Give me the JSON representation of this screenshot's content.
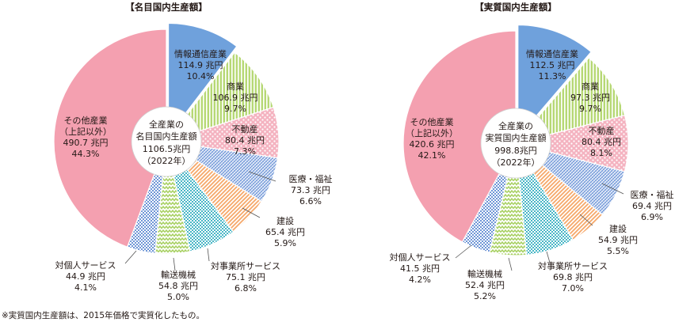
{
  "footnote": "※実質国内生産額は、2015年価格で実質化したもの。",
  "styles": {
    "情報通信産業": {
      "fill": "#6fa1dc",
      "pattern": "solid"
    },
    "商業": {
      "fill": "#b6d874",
      "pattern": "vlines"
    },
    "不動産": {
      "fill": "#f4b3c0",
      "pattern": "dots"
    },
    "医療・福祉": {
      "fill": "#6f96d6",
      "pattern": "hatch"
    },
    "建設": {
      "fill": "#f6a86a",
      "pattern": "diag"
    },
    "対事業所サービス": {
      "fill": "#48b6c6",
      "pattern": "checker"
    },
    "輸送機械": {
      "fill": "#a7d061",
      "pattern": "zigzag"
    },
    "対個人サービス": {
      "fill": "#6f96d6",
      "pattern": "checker"
    },
    "その他産業": {
      "fill": "#f4a0b0",
      "pattern": "solid"
    }
  },
  "chart_data": [
    {
      "type": "pie",
      "title": "【名目国内生産額】",
      "center_label": [
        "全産業の",
        "名目国内生産額",
        "1106.5兆円",
        "（2022年）"
      ],
      "categories": [
        "情報通信産業",
        "商業",
        "不動産",
        "医療・福祉",
        "建設",
        "対事業所サービス",
        "輸送機械",
        "対個人サービス",
        "その他産業"
      ],
      "values": [
        114.9,
        106.9,
        80.4,
        73.3,
        65.4,
        75.1,
        54.8,
        44.9,
        490.7
      ],
      "shares": [
        10.4,
        9.7,
        7.3,
        6.6,
        5.9,
        6.8,
        5.0,
        4.1,
        44.3
      ],
      "value_labels": [
        "114.9 兆円",
        "106.9 兆円",
        "80.4 兆円",
        "73.3 兆円",
        "65.4 兆円",
        "75.1 兆円",
        "54.8 兆円",
        "44.9 兆円",
        "490.7 兆円"
      ],
      "share_labels": [
        "10.4%",
        "9.7%",
        "7.3%",
        "6.6%",
        "5.9%",
        "6.8%",
        "5.0%",
        "4.1%",
        "44.3%"
      ],
      "name_labels": [
        [
          "情報通信産業"
        ],
        [
          "商業"
        ],
        [
          "不動産"
        ],
        [
          "医療・福祉"
        ],
        [
          "建設"
        ],
        [
          "対事業所サービス"
        ],
        [
          "輸送機械"
        ],
        [
          "対個人サービス"
        ],
        [
          "その他産業",
          "（上記以外）"
        ]
      ],
      "exploded": "情報通信産業"
    },
    {
      "type": "pie",
      "title": "【実質国内生産額】",
      "center_label": [
        "全産業の",
        "実質国内生産額",
        "998.8兆円",
        "（2022年）"
      ],
      "categories": [
        "情報通信産業",
        "商業",
        "不動産",
        "医療・福祉",
        "建設",
        "対事業所サービス",
        "輸送機械",
        "対個人サービス",
        "その他産業"
      ],
      "values": [
        112.5,
        97.3,
        80.4,
        69.4,
        54.9,
        69.8,
        52.4,
        41.5,
        420.6
      ],
      "shares": [
        11.3,
        9.7,
        8.1,
        6.9,
        5.5,
        7.0,
        5.2,
        4.2,
        42.1
      ],
      "value_labels": [
        "112.5 兆円",
        "97.3 兆円",
        "80.4 兆円",
        "69.4 兆円",
        "54.9 兆円",
        "69.8 兆円",
        "52.4 兆円",
        "41.5 兆円",
        "420.6 兆円"
      ],
      "share_labels": [
        "11.3%",
        "9.7%",
        "8.1%",
        "6.9%",
        "5.5%",
        "7.0%",
        "5.2%",
        "4.2%",
        "42.1%"
      ],
      "name_labels": [
        [
          "情報通信産業"
        ],
        [
          "商業"
        ],
        [
          "不動産"
        ],
        [
          "医療・福祉"
        ],
        [
          "建設"
        ],
        [
          "対事業所サービス"
        ],
        [
          "輸送機械"
        ],
        [
          "対個人サービス"
        ],
        [
          "その他産業",
          "（上記以外）"
        ]
      ],
      "exploded": "情報通信産業"
    }
  ]
}
